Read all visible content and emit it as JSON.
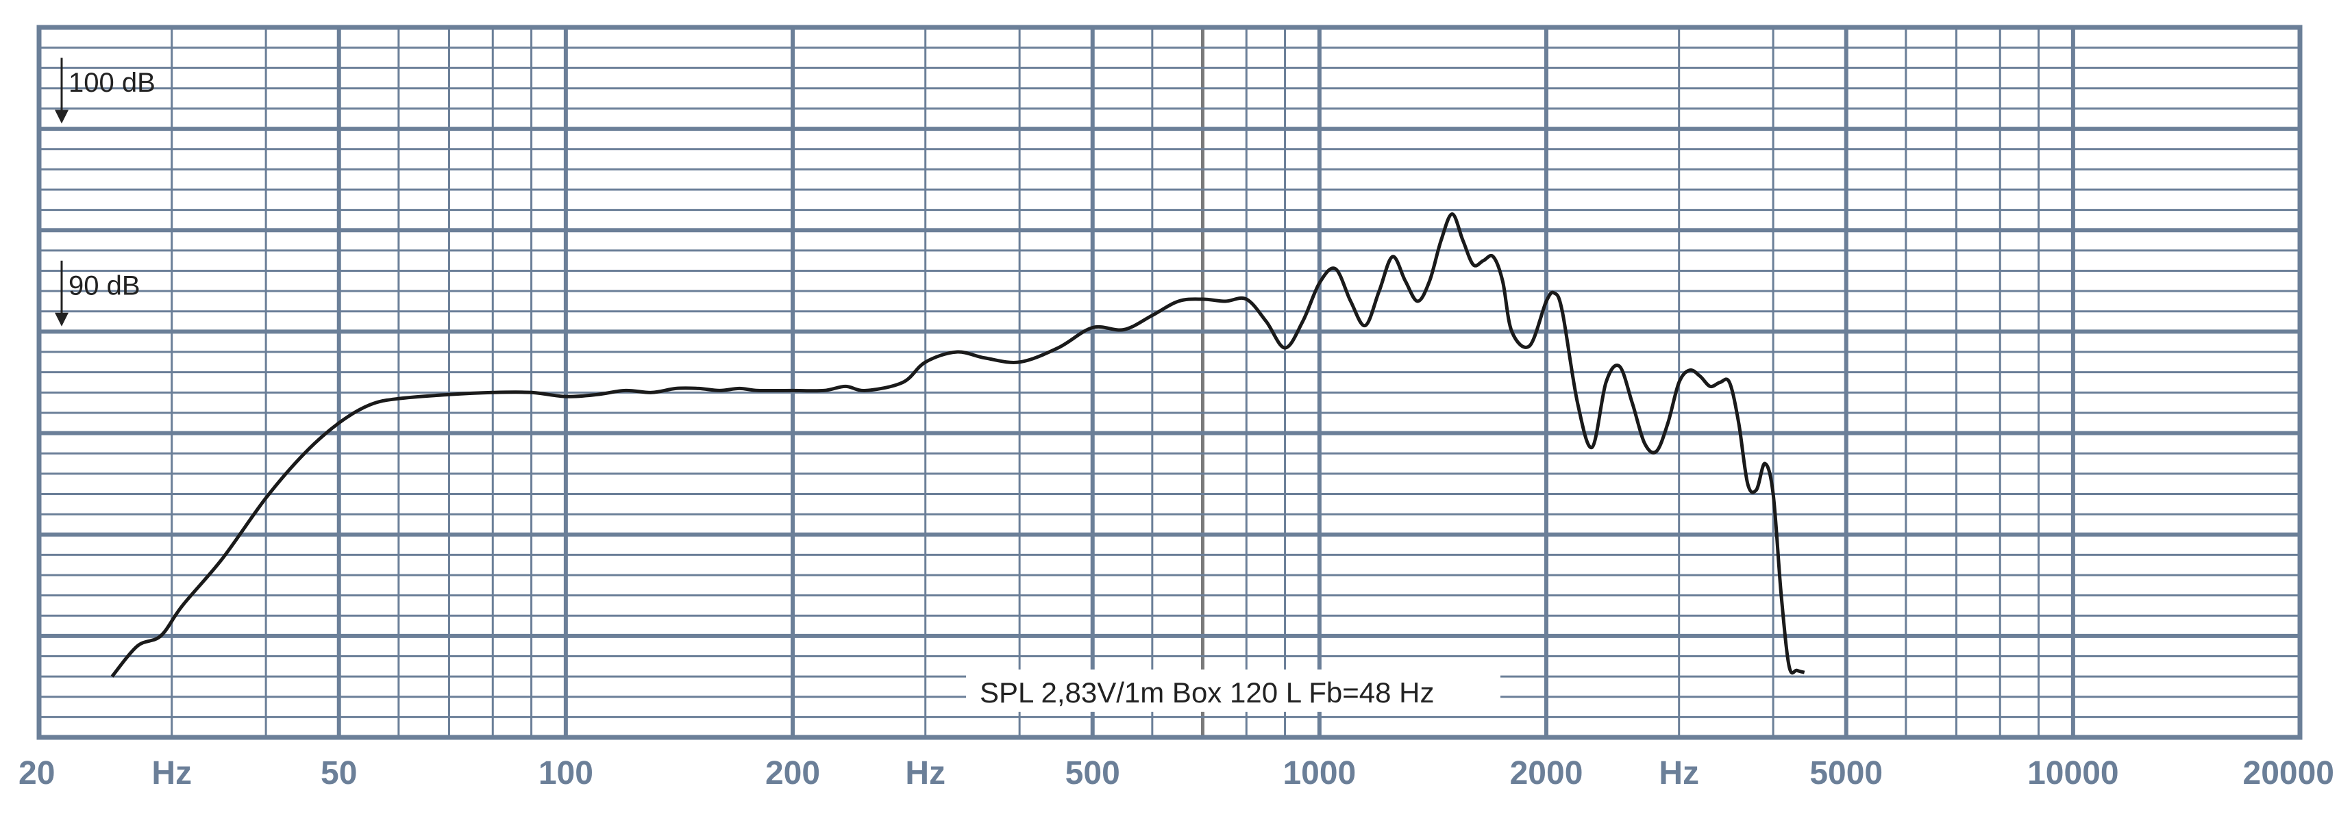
{
  "chart_data": {
    "type": "line",
    "title": "",
    "xlabel": "Hz",
    "ylabel": "",
    "x_scale": "log",
    "xlim": [
      20,
      20000
    ],
    "ylim": [
      70,
      105
    ],
    "grid": true,
    "x_tick_labels": [
      "20",
      "Hz",
      "50",
      "100",
      "200",
      "Hz",
      "500",
      "1000",
      "2000",
      "Hz",
      "5000",
      "10000",
      "20000"
    ],
    "reference_labels": [
      "100 dB",
      "90 dB"
    ],
    "annotation": "SPL  2,83V/1m    Box 120 L Fb=48 Hz",
    "colors": {
      "grid": "#6b7f98",
      "line": "#1a1a1a",
      "label": "#6b7f98"
    },
    "series": [
      {
        "x": [
          25,
          27,
          29,
          31,
          35,
          40,
          45,
          50,
          55,
          60,
          70,
          80,
          90,
          100,
          110,
          120,
          130,
          140,
          150,
          160,
          170,
          180,
          200,
          220,
          235,
          250,
          280,
          300,
          330,
          360,
          400,
          450,
          500,
          550,
          600,
          650,
          700,
          750,
          800,
          850,
          900,
          950,
          1000,
          1050,
          1100,
          1150,
          1200,
          1250,
          1300,
          1350,
          1400,
          1450,
          1500,
          1550,
          1600,
          1650,
          1700,
          1750,
          1800,
          1900,
          2000,
          2050,
          2100,
          2200,
          2300,
          2400,
          2500,
          2600,
          2700,
          2800,
          2900,
          3000,
          3100,
          3200,
          3300,
          3400,
          3500,
          3600,
          3700,
          3800,
          3900,
          4000,
          4100,
          4200,
          4300,
          4400
        ],
        "y": [
          73,
          74.5,
          75,
          76.5,
          78.8,
          81.8,
          84,
          85.5,
          86.4,
          86.7,
          86.9,
          87,
          87,
          86.8,
          86.9,
          87.1,
          87,
          87.2,
          87.2,
          87.1,
          87.2,
          87.1,
          87.1,
          87.1,
          87.3,
          87.1,
          87.5,
          88.5,
          89,
          88.7,
          88.5,
          89.2,
          90.2,
          90.1,
          90.8,
          91.5,
          91.6,
          91.5,
          91.6,
          90.5,
          89.2,
          90.5,
          92.4,
          93.1,
          91.5,
          90.3,
          92,
          93.7,
          92.5,
          91.5,
          92.5,
          94.5,
          95.8,
          94.5,
          93.3,
          93.5,
          93.7,
          92.5,
          90,
          89.3,
          91.5,
          91.9,
          91,
          86.5,
          84.3,
          87.5,
          88.3,
          86.5,
          84.5,
          84.1,
          85.5,
          87.5,
          88.1,
          87.8,
          87.3,
          87.5,
          87.5,
          85.5,
          82.5,
          82.2,
          83.5,
          82,
          77,
          73.5,
          73.3,
          73.2
        ]
      }
    ]
  }
}
